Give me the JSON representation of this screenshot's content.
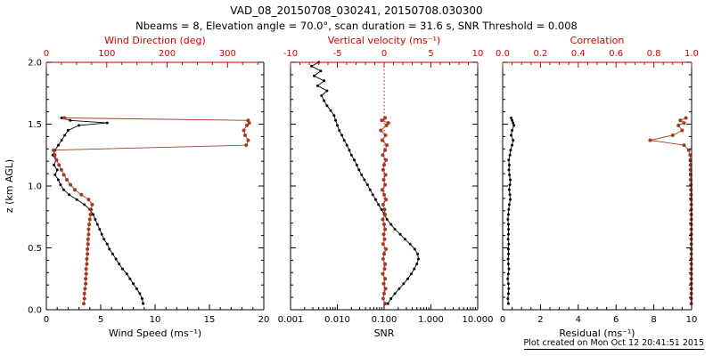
{
  "header": {
    "title": "VAD_08_20150708_030241, 20150708.030300",
    "subtitle": "Nbeams = 8, Elevation angle = 70.0°, scan duration = 31.6 s, SNR Threshold = 0.008"
  },
  "footer": {
    "created": "Plot created on Mon Oct 12 20:41:51 2015"
  },
  "colors": {
    "axis_red": "#cc0000",
    "series_red": "#a53a21",
    "black": "#000000",
    "background": "#ffffff"
  },
  "chart_data": [
    {
      "type": "line",
      "name": "wind-panel",
      "x_bottom": {
        "title": "Wind Speed (ms⁻¹)",
        "scale": "linear",
        "min": 0,
        "max": 20,
        "tick_vals": [
          0,
          5,
          10,
          15,
          20
        ],
        "tick_labels": [
          "0",
          "5",
          "10",
          "15",
          "20"
        ],
        "minor_step": 1
      },
      "x_top": {
        "title": "Wind Direction (deg)",
        "min": 0,
        "max": 360,
        "tick_vals": [
          0,
          100,
          200,
          300
        ],
        "tick_labels": [
          "0",
          "100",
          "200",
          "300"
        ],
        "minor_step": 25
      },
      "y": {
        "title": "z (km AGL)",
        "min": 0,
        "max": 2,
        "tick_vals": [
          0,
          0.5,
          1,
          1.5,
          2
        ],
        "tick_labels": [
          "0.0",
          "0.5",
          "1.0",
          "1.5",
          "2.0"
        ],
        "minor_step": 0.1,
        "show_labels": true
      },
      "series": [
        {
          "name": "wind-speed",
          "axis": "bottom",
          "color": "black",
          "marker": 1.5,
          "z": [
            0.05,
            0.09,
            0.13,
            0.17,
            0.21,
            0.25,
            0.29,
            0.33,
            0.37,
            0.41,
            0.45,
            0.49,
            0.53,
            0.57,
            0.61,
            0.65,
            0.69,
            0.73,
            0.77,
            0.81,
            0.85,
            0.89,
            0.93,
            0.97,
            1.01,
            1.05,
            1.09,
            1.13,
            1.17,
            1.21,
            1.25,
            1.29,
            1.33,
            1.37,
            1.41,
            1.45,
            1.49,
            1.51,
            1.53,
            1.55
          ],
          "values": [
            8.9,
            8.8,
            8.6,
            8.3,
            8.0,
            7.7,
            7.4,
            7.0,
            6.7,
            6.4,
            6.1,
            5.8,
            5.6,
            5.3,
            5.1,
            4.9,
            4.7,
            4.5,
            4.3,
            4.0,
            3.5,
            2.8,
            2.1,
            1.6,
            1.3,
            1.1,
            0.8,
            1.0,
            0.7,
            0.9,
            0.6,
            0.8,
            1.1,
            1.4,
            1.7,
            2.0,
            3.0,
            5.6,
            2.2,
            1.4
          ]
        },
        {
          "name": "wind-direction",
          "axis": "top",
          "color": "series_red",
          "marker": 2,
          "z": [
            0.05,
            0.09,
            0.13,
            0.17,
            0.21,
            0.25,
            0.29,
            0.33,
            0.37,
            0.41,
            0.45,
            0.49,
            0.53,
            0.57,
            0.61,
            0.65,
            0.69,
            0.73,
            0.77,
            0.81,
            0.85,
            0.89,
            0.93,
            0.97,
            1.01,
            1.05,
            1.09,
            1.13,
            1.17,
            1.21,
            1.25,
            1.29,
            1.33,
            1.37,
            1.41,
            1.45,
            1.49,
            1.51,
            1.53,
            1.55
          ],
          "values": [
            62,
            63,
            63,
            64,
            65,
            65,
            66,
            66,
            67,
            67,
            68,
            68,
            69,
            69,
            70,
            70,
            71,
            72,
            73,
            74,
            76,
            70,
            58,
            47,
            40,
            34,
            29,
            25,
            21,
            17,
            14,
            12,
            331,
            334,
            329,
            327,
            332,
            336,
            334,
            30
          ]
        }
      ]
    },
    {
      "type": "line",
      "name": "snr-panel",
      "x_bottom": {
        "title": "SNR",
        "scale": "log",
        "min": 0.001,
        "max": 10,
        "tick_vals": [
          0.001,
          0.01,
          0.1,
          1,
          10
        ],
        "tick_labels": [
          "0.001",
          "0.010",
          "0.100",
          "1.000",
          "10.000"
        ]
      },
      "x_top": {
        "title": "Vertical velocity (ms⁻¹)",
        "min": -10,
        "max": 10,
        "tick_vals": [
          -10,
          -5,
          0,
          5,
          10
        ],
        "tick_labels": [
          "-10",
          "-5",
          "0",
          "5",
          "10"
        ],
        "minor_step": 1
      },
      "y": {
        "title": "",
        "min": 0,
        "max": 2,
        "tick_vals": [
          0,
          0.5,
          1,
          1.5,
          2
        ],
        "tick_labels": [
          "0.0",
          "0.5",
          "1.0",
          "1.5",
          "2.0"
        ],
        "minor_step": 0.1,
        "show_labels": false
      },
      "refline": {
        "axis": "top",
        "value": 0,
        "style": "dotted",
        "color": "axis_red"
      },
      "series": [
        {
          "name": "snr-profile",
          "axis": "bottom",
          "color": "black",
          "marker": 1.5,
          "z": [
            0.05,
            0.09,
            0.13,
            0.17,
            0.21,
            0.25,
            0.29,
            0.33,
            0.37,
            0.41,
            0.45,
            0.49,
            0.53,
            0.57,
            0.61,
            0.65,
            0.69,
            0.73,
            0.77,
            0.81,
            0.85,
            0.89,
            0.93,
            0.97,
            1.01,
            1.05,
            1.09,
            1.13,
            1.17,
            1.21,
            1.25,
            1.29,
            1.33,
            1.37,
            1.41,
            1.45,
            1.49,
            1.53,
            1.57,
            1.61,
            1.65,
            1.69,
            1.73,
            1.77,
            1.81,
            1.85,
            1.89,
            1.93,
            1.97,
            2.0
          ],
          "values": [
            0.12,
            0.14,
            0.17,
            0.21,
            0.26,
            0.32,
            0.38,
            0.44,
            0.5,
            0.54,
            0.52,
            0.45,
            0.36,
            0.28,
            0.22,
            0.17,
            0.14,
            0.115,
            0.1,
            0.088,
            0.076,
            0.066,
            0.057,
            0.05,
            0.044,
            0.038,
            0.033,
            0.029,
            0.026,
            0.023,
            0.02,
            0.018,
            0.016,
            0.014,
            0.0125,
            0.011,
            0.01,
            0.0092,
            0.0085,
            0.0072,
            0.006,
            0.0052,
            0.0046,
            0.006,
            0.0038,
            0.0052,
            0.0032,
            0.0044,
            0.0028,
            0.004
          ]
        },
        {
          "name": "vertical-velocity",
          "axis": "top",
          "color": "series_red",
          "marker": 2,
          "z": [
            0.05,
            0.09,
            0.13,
            0.17,
            0.21,
            0.25,
            0.29,
            0.33,
            0.37,
            0.41,
            0.45,
            0.49,
            0.53,
            0.57,
            0.61,
            0.65,
            0.69,
            0.73,
            0.77,
            0.81,
            0.85,
            0.89,
            0.93,
            0.97,
            1.01,
            1.05,
            1.09,
            1.13,
            1.17,
            1.21,
            1.25,
            1.29,
            1.33,
            1.37,
            1.41,
            1.45,
            1.49,
            1.51,
            1.53,
            1.55
          ],
          "values": [
            0.1,
            -0.1,
            0.0,
            0.15,
            -0.05,
            0.1,
            -0.15,
            0.05,
            0.1,
            -0.1,
            0.0,
            0.2,
            -0.1,
            0.05,
            -0.05,
            0.1,
            0.0,
            -0.15,
            0.1,
            0.05,
            -0.1,
            0.2,
            0.0,
            -0.2,
            0.1,
            -0.05,
            0.15,
            -0.1,
            0.0,
            0.2,
            -0.15,
            0.1,
            0.3,
            -0.2,
            0.15,
            -0.35,
            0.25,
            0.45,
            -0.25,
            0.1
          ]
        }
      ]
    },
    {
      "type": "line",
      "name": "residual-panel",
      "x_bottom": {
        "title": "Residual (ms⁻¹)",
        "scale": "linear",
        "min": 0,
        "max": 10,
        "tick_vals": [
          0,
          2,
          4,
          6,
          8,
          10
        ],
        "tick_labels": [
          "0",
          "2",
          "4",
          "6",
          "8",
          "10"
        ],
        "minor_step": 0.5
      },
      "x_top": {
        "title": "Correlation",
        "min": 0,
        "max": 1,
        "tick_vals": [
          0,
          0.2,
          0.4,
          0.6,
          0.8,
          1
        ],
        "tick_labels": [
          "0.0",
          "0.2",
          "0.4",
          "0.6",
          "0.8",
          "1.0"
        ],
        "minor_step": 0.05
      },
      "y": {
        "title": "",
        "min": 0,
        "max": 2,
        "tick_vals": [
          0,
          0.5,
          1,
          1.5,
          2
        ],
        "tick_labels": [
          "0.0",
          "0.5",
          "1.0",
          "1.5",
          "2.0"
        ],
        "minor_step": 0.1,
        "show_labels": false
      },
      "series": [
        {
          "name": "residual",
          "axis": "bottom",
          "color": "black",
          "marker": 1.5,
          "z": [
            0.05,
            0.09,
            0.13,
            0.17,
            0.21,
            0.25,
            0.29,
            0.33,
            0.37,
            0.41,
            0.45,
            0.49,
            0.53,
            0.57,
            0.61,
            0.65,
            0.69,
            0.73,
            0.77,
            0.81,
            0.85,
            0.89,
            0.93,
            0.97,
            1.01,
            1.05,
            1.09,
            1.13,
            1.17,
            1.21,
            1.25,
            1.29,
            1.33,
            1.37,
            1.41,
            1.45,
            1.49,
            1.51,
            1.53,
            1.55
          ],
          "values": [
            0.3,
            0.28,
            0.3,
            0.32,
            0.3,
            0.27,
            0.3,
            0.33,
            0.3,
            0.29,
            0.31,
            0.3,
            0.32,
            0.29,
            0.3,
            0.31,
            0.3,
            0.28,
            0.3,
            0.32,
            0.35,
            0.4,
            0.38,
            0.35,
            0.38,
            0.4,
            0.36,
            0.33,
            0.35,
            0.32,
            0.38,
            0.42,
            0.5,
            0.55,
            0.45,
            0.5,
            0.6,
            0.55,
            0.5,
            0.45
          ]
        },
        {
          "name": "correlation",
          "axis": "top",
          "color": "series_red",
          "marker": 2,
          "z": [
            0.05,
            0.09,
            0.13,
            0.17,
            0.21,
            0.25,
            0.29,
            0.33,
            0.37,
            0.41,
            0.45,
            0.49,
            0.53,
            0.57,
            0.61,
            0.65,
            0.69,
            0.73,
            0.77,
            0.81,
            0.85,
            0.89,
            0.93,
            0.97,
            1.01,
            1.05,
            1.09,
            1.13,
            1.17,
            1.21,
            1.25,
            1.29,
            1.33,
            1.37,
            1.41,
            1.45,
            1.49,
            1.51,
            1.53,
            1.55
          ],
          "values": [
            0.998,
            0.998,
            0.998,
            0.998,
            0.998,
            0.998,
            0.998,
            0.998,
            0.998,
            0.998,
            0.998,
            0.998,
            0.998,
            0.998,
            0.998,
            0.998,
            0.998,
            0.998,
            0.998,
            0.998,
            0.998,
            0.997,
            0.997,
            0.996,
            0.996,
            0.995,
            0.995,
            0.994,
            0.994,
            0.993,
            0.992,
            0.985,
            0.96,
            0.78,
            0.9,
            0.95,
            0.93,
            0.96,
            0.94,
            0.97
          ]
        }
      ]
    }
  ]
}
